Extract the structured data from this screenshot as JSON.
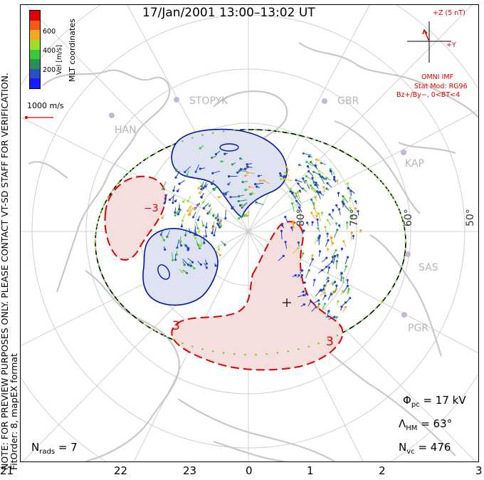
{
  "title": "17/Jan/2001 13:00–13:02 UT",
  "side_note": {
    "line1": "NOTE: FOR PREVIEW PURPOSES ONLY. PLEASE CONTACT VT-SD STAFF FOR VERIFICATION.",
    "line2": "FitOrder: 8, mapEX format"
  },
  "colorbar": {
    "title": "Vel [m/s]",
    "coord_label": "MLT coordinates",
    "ticks": [
      "600",
      "400",
      "200"
    ],
    "colors": [
      "#e00000",
      "#f05a1a",
      "#f5a623",
      "#9adf2a",
      "#3cc83c",
      "#2a8f5a",
      "#2a4fbf",
      "#1a1aff"
    ]
  },
  "vector_scale": {
    "label": "1000 m/s"
  },
  "imf": {
    "z_label": "+Z (5 nT)",
    "y_label": "+Y",
    "source": "OMNI IMF",
    "stat_mod": "Stat Mod: RG96",
    "condition": "Bz+/By−, 0<BT<4"
  },
  "stations": [
    "STOPYK",
    "GBR",
    "HAN",
    "KAP",
    "SAS",
    "PGR"
  ],
  "latitude_labels": [
    "80°",
    "70°",
    "60°",
    "50°"
  ],
  "contour_labels": [
    "−3",
    "3",
    "3"
  ],
  "stats": {
    "phi_sym": "Φ",
    "phi_sub": "pc",
    "phi_val": "= 17 kV",
    "lambda_sym": "Λ",
    "lambda_sub": "HM",
    "lambda_val": "= 63°",
    "nvc_sym": "N",
    "nvc_sub": "vc",
    "nvc_val": "= 476",
    "nrads_sym": "N",
    "nrads_sub": "rads",
    "nrads_val": "= 7"
  },
  "mlt_labels": [
    "21",
    "22",
    "23",
    "0",
    "1",
    "2",
    "3"
  ],
  "colors": {
    "negative_cell_fill": "#dfe2f0",
    "negative_cell_line": "#0018a8",
    "positive_cell_fill": "#f5dede",
    "positive_cell_line": "#e00000",
    "coastline": "#c8c8c8",
    "grid": "#cfcfcf"
  }
}
